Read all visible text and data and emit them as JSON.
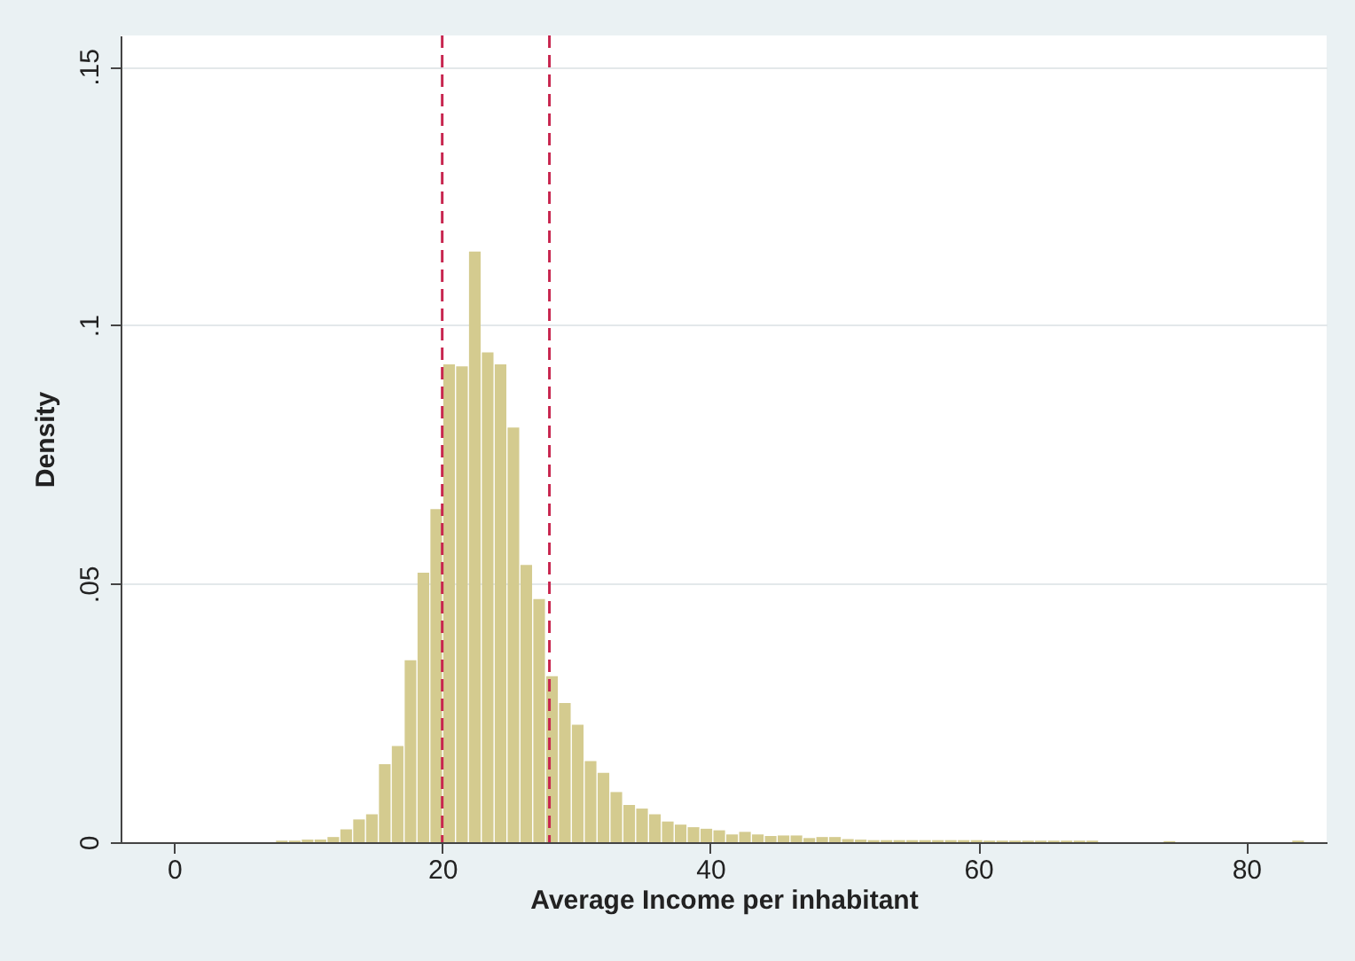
{
  "chart_data": {
    "type": "histogram",
    "xlabel": "Average Income per inhabitant",
    "ylabel": "Density",
    "bins": [
      7.6,
      8.56,
      9.52,
      10.48,
      11.44,
      12.4,
      13.36,
      14.32,
      15.28,
      16.24,
      17.2,
      18.16,
      19.12,
      20.08,
      21.04,
      22.0,
      22.96,
      23.92,
      24.88,
      25.84,
      26.8,
      27.76,
      28.72,
      29.68,
      30.64,
      31.6,
      32.56,
      33.52,
      34.48,
      35.44,
      36.4,
      37.36,
      38.32,
      39.28,
      40.24,
      41.2,
      42.16,
      43.12,
      44.08,
      45.04,
      46.0,
      46.96,
      47.92,
      48.88,
      49.84,
      50.8,
      51.76,
      52.72,
      53.68,
      54.64,
      55.6,
      56.56,
      57.52,
      58.48,
      59.44,
      60.4,
      61.36,
      62.32,
      63.28,
      64.24,
      65.2,
      66.16,
      67.12,
      68.08,
      69.04,
      70.0,
      70.96,
      71.92,
      72.88,
      73.84,
      74.8,
      75.76,
      76.72,
      77.68,
      78.64,
      79.6,
      80.56,
      81.52,
      82.48,
      83.44,
      84.4
    ],
    "values": [
      0.0003,
      0.0003,
      0.0005,
      0.0005,
      0.001,
      0.0025,
      0.0044,
      0.0054,
      0.0151,
      0.0186,
      0.0352,
      0.0521,
      0.0644,
      0.0924,
      0.092,
      0.1142,
      0.0947,
      0.0924,
      0.0802,
      0.0536,
      0.047,
      0.0321,
      0.0269,
      0.0227,
      0.0157,
      0.0134,
      0.0097,
      0.0072,
      0.0065,
      0.0054,
      0.004,
      0.0034,
      0.0029,
      0.0026,
      0.0023,
      0.0015,
      0.002,
      0.0015,
      0.0012,
      0.0013,
      0.0013,
      0.0008,
      0.001,
      0.001,
      0.0006,
      0.0005,
      0.0004,
      0.0004,
      0.0004,
      0.0004,
      0.0004,
      0.0004,
      0.0004,
      0.0004,
      0.0004,
      0.0003,
      0.0003,
      0.0003,
      0.0003,
      0.0003,
      0.0003,
      0.0003,
      0.0003,
      0.0003,
      0,
      0,
      0,
      0,
      0,
      0.0002,
      0,
      0,
      0,
      0,
      0,
      0,
      0,
      0,
      0,
      0.0003
    ],
    "color": "#d4cb8f",
    "xlim": [
      -4,
      86
    ],
    "xticks": [
      0,
      20,
      40,
      60,
      80
    ],
    "ylim": [
      0,
      0.156
    ],
    "yticks": [
      {
        "value": 0,
        "label": "0"
      },
      {
        "value": 0.05,
        "label": ".05"
      },
      {
        "value": 0.1,
        "label": ".1"
      },
      {
        "value": 0.15,
        "label": ".15"
      }
    ],
    "grid": "y",
    "ref_lines": [
      {
        "axis": "x",
        "value": 20,
        "color": "#c8264f",
        "line_style": "dashed"
      },
      {
        "axis": "x",
        "value": 28,
        "color": "#c8264f",
        "line_style": "dashed"
      }
    ]
  }
}
